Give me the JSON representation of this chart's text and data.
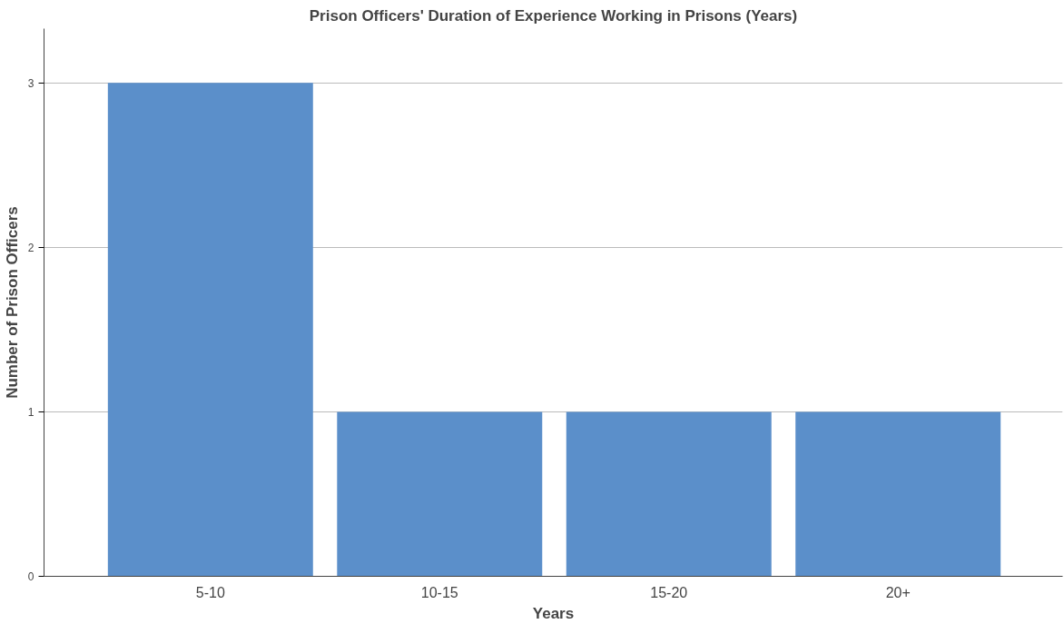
{
  "chart_data": {
    "type": "bar",
    "title": "Prison Officers' Duration of Experience Working in Prisons (Years)",
    "xlabel": "Years",
    "ylabel": "Number of Prison Officers",
    "categories": [
      "5-10",
      "10-15",
      "15-20",
      "20+"
    ],
    "values": [
      3,
      1,
      1,
      1
    ],
    "color": "#5b8fca",
    "ylim": [
      0,
      3.33
    ],
    "yticks": [
      0,
      1,
      2,
      3
    ],
    "grid": "y"
  }
}
